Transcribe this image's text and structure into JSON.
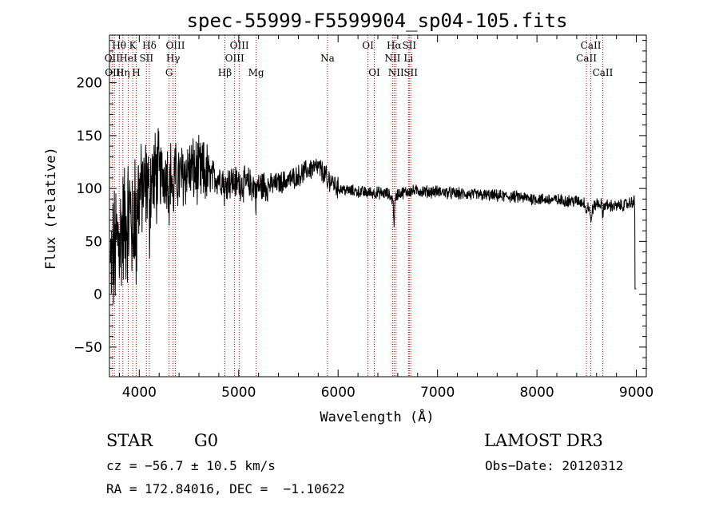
{
  "chart_data": {
    "type": "line",
    "title": "spec-55999-F5599904_sp04-105.fits",
    "xlabel": "Wavelength (Å)",
    "ylabel": "Flux (relative)",
    "xlim": [
      3700,
      9100
    ],
    "ylim": [
      -78,
      245
    ],
    "x_ticks": [
      4000,
      5000,
      6000,
      7000,
      8000,
      9000
    ],
    "y_ticks": [
      -50,
      0,
      50,
      100,
      150,
      200
    ],
    "grid": false,
    "line_color": "#000000",
    "marker_color": "#cc0000",
    "spectrum_envelope": {
      "x": [
        3710,
        3750,
        3800,
        3850,
        3900,
        3950,
        4000,
        4050,
        4100,
        4200,
        4300,
        4400,
        4500,
        4600,
        4700,
        4800,
        4900,
        5000,
        5100,
        5200,
        5300,
        5400,
        5500,
        5600,
        5700,
        5800,
        5900,
        6000,
        6100,
        6200,
        6300,
        6400,
        6500,
        6563,
        6600,
        6700,
        6800,
        6900,
        7000,
        7200,
        7400,
        7600,
        7800,
        8000,
        8200,
        8400,
        8500,
        8540,
        8600,
        8700,
        8800,
        8900,
        8980,
        9000
      ],
      "y": [
        20,
        40,
        55,
        65,
        75,
        90,
        95,
        100,
        108,
        112,
        115,
        110,
        118,
        115,
        112,
        110,
        107,
        105,
        104,
        102,
        103,
        105,
        108,
        112,
        118,
        120,
        110,
        100,
        98,
        97,
        96,
        96,
        95,
        88,
        95,
        97,
        98,
        97,
        97,
        95,
        94,
        93,
        92,
        90,
        89,
        88,
        86,
        78,
        86,
        84,
        83,
        85,
        88,
        5
      ]
    },
    "line_markers": [
      {
        "wavelength": 3727,
        "label": "OII",
        "row": 2
      },
      {
        "wavelength": 3750,
        "label": "OIII",
        "row": 3
      },
      {
        "wavelength": 3798,
        "label": "Hθ",
        "row": 1
      },
      {
        "wavelength": 3835,
        "label": "Hη",
        "row": 3
      },
      {
        "wavelength": 3889,
        "label": "HeI",
        "row": 2
      },
      {
        "wavelength": 3934,
        "label": "K",
        "row": 1
      },
      {
        "wavelength": 3969,
        "label": "H",
        "row": 3
      },
      {
        "wavelength": 4072,
        "label": "SII",
        "row": 2
      },
      {
        "wavelength": 4102,
        "label": "Hδ",
        "row": 1
      },
      {
        "wavelength": 4300,
        "label": "G",
        "row": 3
      },
      {
        "wavelength": 4340,
        "label": "Hγ",
        "row": 2
      },
      {
        "wavelength": 4363,
        "label": "OIII",
        "row": 1
      },
      {
        "wavelength": 4861,
        "label": "Hβ",
        "row": 3
      },
      {
        "wavelength": 4959,
        "label": "OIII",
        "row": 2
      },
      {
        "wavelength": 5007,
        "label": "OIII",
        "row": 1
      },
      {
        "wavelength": 5175,
        "label": "Mg",
        "row": 3
      },
      {
        "wavelength": 5893,
        "label": "Na",
        "row": 2
      },
      {
        "wavelength": 6300,
        "label": "OI",
        "row": 1
      },
      {
        "wavelength": 6364,
        "label": "OI",
        "row": 3
      },
      {
        "wavelength": 6548,
        "label": "NII",
        "row": 2
      },
      {
        "wavelength": 6563,
        "label": "Hα",
        "row": 1
      },
      {
        "wavelength": 6583,
        "label": "NII",
        "row": 3
      },
      {
        "wavelength": 6708,
        "label": "Li",
        "row": 2
      },
      {
        "wavelength": 6716,
        "label": "SII",
        "row": 1
      },
      {
        "wavelength": 6731,
        "label": "SII",
        "row": 3
      },
      {
        "wavelength": 8498,
        "label": "CaII",
        "row": 2
      },
      {
        "wavelength": 8542,
        "label": "CaII",
        "row": 1
      },
      {
        "wavelength": 8662,
        "label": "CaII",
        "row": 3
      }
    ]
  },
  "info": {
    "class": "STAR",
    "subclass": "G0",
    "redshift": "cz = −56.7 ± 10.5 km/s",
    "coords": "RA = 172.84016, DEC =  −1.10622",
    "survey": "LAMOST DR3",
    "obs_date": "Obs−Date: 20120312"
  }
}
